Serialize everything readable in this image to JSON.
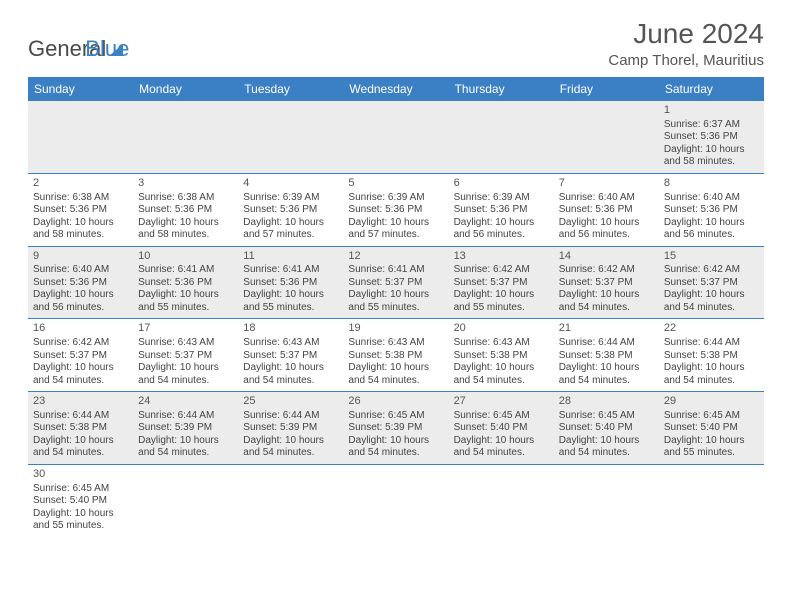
{
  "logo": {
    "general": "General",
    "blue": "Blue"
  },
  "header": {
    "month_title": "June 2024",
    "location": "Camp Thorel, Mauritius"
  },
  "colors": {
    "accent": "#3b7fc4",
    "alt_bg": "#ececec",
    "text": "#444444"
  },
  "day_headers": [
    "Sunday",
    "Monday",
    "Tuesday",
    "Wednesday",
    "Thursday",
    "Friday",
    "Saturday"
  ],
  "weeks": [
    [
      {
        "num": "",
        "sunrise": "",
        "sunset": "",
        "daylight": "",
        "empty": true
      },
      {
        "num": "",
        "sunrise": "",
        "sunset": "",
        "daylight": "",
        "empty": true
      },
      {
        "num": "",
        "sunrise": "",
        "sunset": "",
        "daylight": "",
        "empty": true
      },
      {
        "num": "",
        "sunrise": "",
        "sunset": "",
        "daylight": "",
        "empty": true
      },
      {
        "num": "",
        "sunrise": "",
        "sunset": "",
        "daylight": "",
        "empty": true
      },
      {
        "num": "",
        "sunrise": "",
        "sunset": "",
        "daylight": "",
        "empty": true
      },
      {
        "num": "1",
        "sunrise": "Sunrise: 6:37 AM",
        "sunset": "Sunset: 5:36 PM",
        "daylight": "Daylight: 10 hours and 58 minutes."
      }
    ],
    [
      {
        "num": "2",
        "sunrise": "Sunrise: 6:38 AM",
        "sunset": "Sunset: 5:36 PM",
        "daylight": "Daylight: 10 hours and 58 minutes."
      },
      {
        "num": "3",
        "sunrise": "Sunrise: 6:38 AM",
        "sunset": "Sunset: 5:36 PM",
        "daylight": "Daylight: 10 hours and 58 minutes."
      },
      {
        "num": "4",
        "sunrise": "Sunrise: 6:39 AM",
        "sunset": "Sunset: 5:36 PM",
        "daylight": "Daylight: 10 hours and 57 minutes."
      },
      {
        "num": "5",
        "sunrise": "Sunrise: 6:39 AM",
        "sunset": "Sunset: 5:36 PM",
        "daylight": "Daylight: 10 hours and 57 minutes."
      },
      {
        "num": "6",
        "sunrise": "Sunrise: 6:39 AM",
        "sunset": "Sunset: 5:36 PM",
        "daylight": "Daylight: 10 hours and 56 minutes."
      },
      {
        "num": "7",
        "sunrise": "Sunrise: 6:40 AM",
        "sunset": "Sunset: 5:36 PM",
        "daylight": "Daylight: 10 hours and 56 minutes."
      },
      {
        "num": "8",
        "sunrise": "Sunrise: 6:40 AM",
        "sunset": "Sunset: 5:36 PM",
        "daylight": "Daylight: 10 hours and 56 minutes."
      }
    ],
    [
      {
        "num": "9",
        "sunrise": "Sunrise: 6:40 AM",
        "sunset": "Sunset: 5:36 PM",
        "daylight": "Daylight: 10 hours and 56 minutes."
      },
      {
        "num": "10",
        "sunrise": "Sunrise: 6:41 AM",
        "sunset": "Sunset: 5:36 PM",
        "daylight": "Daylight: 10 hours and 55 minutes."
      },
      {
        "num": "11",
        "sunrise": "Sunrise: 6:41 AM",
        "sunset": "Sunset: 5:36 PM",
        "daylight": "Daylight: 10 hours and 55 minutes."
      },
      {
        "num": "12",
        "sunrise": "Sunrise: 6:41 AM",
        "sunset": "Sunset: 5:37 PM",
        "daylight": "Daylight: 10 hours and 55 minutes."
      },
      {
        "num": "13",
        "sunrise": "Sunrise: 6:42 AM",
        "sunset": "Sunset: 5:37 PM",
        "daylight": "Daylight: 10 hours and 55 minutes."
      },
      {
        "num": "14",
        "sunrise": "Sunrise: 6:42 AM",
        "sunset": "Sunset: 5:37 PM",
        "daylight": "Daylight: 10 hours and 54 minutes."
      },
      {
        "num": "15",
        "sunrise": "Sunrise: 6:42 AM",
        "sunset": "Sunset: 5:37 PM",
        "daylight": "Daylight: 10 hours and 54 minutes."
      }
    ],
    [
      {
        "num": "16",
        "sunrise": "Sunrise: 6:42 AM",
        "sunset": "Sunset: 5:37 PM",
        "daylight": "Daylight: 10 hours and 54 minutes."
      },
      {
        "num": "17",
        "sunrise": "Sunrise: 6:43 AM",
        "sunset": "Sunset: 5:37 PM",
        "daylight": "Daylight: 10 hours and 54 minutes."
      },
      {
        "num": "18",
        "sunrise": "Sunrise: 6:43 AM",
        "sunset": "Sunset: 5:37 PM",
        "daylight": "Daylight: 10 hours and 54 minutes."
      },
      {
        "num": "19",
        "sunrise": "Sunrise: 6:43 AM",
        "sunset": "Sunset: 5:38 PM",
        "daylight": "Daylight: 10 hours and 54 minutes."
      },
      {
        "num": "20",
        "sunrise": "Sunrise: 6:43 AM",
        "sunset": "Sunset: 5:38 PM",
        "daylight": "Daylight: 10 hours and 54 minutes."
      },
      {
        "num": "21",
        "sunrise": "Sunrise: 6:44 AM",
        "sunset": "Sunset: 5:38 PM",
        "daylight": "Daylight: 10 hours and 54 minutes."
      },
      {
        "num": "22",
        "sunrise": "Sunrise: 6:44 AM",
        "sunset": "Sunset: 5:38 PM",
        "daylight": "Daylight: 10 hours and 54 minutes."
      }
    ],
    [
      {
        "num": "23",
        "sunrise": "Sunrise: 6:44 AM",
        "sunset": "Sunset: 5:38 PM",
        "daylight": "Daylight: 10 hours and 54 minutes."
      },
      {
        "num": "24",
        "sunrise": "Sunrise: 6:44 AM",
        "sunset": "Sunset: 5:39 PM",
        "daylight": "Daylight: 10 hours and 54 minutes."
      },
      {
        "num": "25",
        "sunrise": "Sunrise: 6:44 AM",
        "sunset": "Sunset: 5:39 PM",
        "daylight": "Daylight: 10 hours and 54 minutes."
      },
      {
        "num": "26",
        "sunrise": "Sunrise: 6:45 AM",
        "sunset": "Sunset: 5:39 PM",
        "daylight": "Daylight: 10 hours and 54 minutes."
      },
      {
        "num": "27",
        "sunrise": "Sunrise: 6:45 AM",
        "sunset": "Sunset: 5:40 PM",
        "daylight": "Daylight: 10 hours and 54 minutes."
      },
      {
        "num": "28",
        "sunrise": "Sunrise: 6:45 AM",
        "sunset": "Sunset: 5:40 PM",
        "daylight": "Daylight: 10 hours and 54 minutes."
      },
      {
        "num": "29",
        "sunrise": "Sunrise: 6:45 AM",
        "sunset": "Sunset: 5:40 PM",
        "daylight": "Daylight: 10 hours and 55 minutes."
      }
    ],
    [
      {
        "num": "30",
        "sunrise": "Sunrise: 6:45 AM",
        "sunset": "Sunset: 5:40 PM",
        "daylight": "Daylight: 10 hours and 55 minutes."
      },
      {
        "num": "",
        "sunrise": "",
        "sunset": "",
        "daylight": "",
        "empty": true,
        "blank": true
      },
      {
        "num": "",
        "sunrise": "",
        "sunset": "",
        "daylight": "",
        "empty": true,
        "blank": true
      },
      {
        "num": "",
        "sunrise": "",
        "sunset": "",
        "daylight": "",
        "empty": true,
        "blank": true
      },
      {
        "num": "",
        "sunrise": "",
        "sunset": "",
        "daylight": "",
        "empty": true,
        "blank": true
      },
      {
        "num": "",
        "sunrise": "",
        "sunset": "",
        "daylight": "",
        "empty": true,
        "blank": true
      },
      {
        "num": "",
        "sunrise": "",
        "sunset": "",
        "daylight": "",
        "empty": true,
        "blank": true
      }
    ]
  ]
}
